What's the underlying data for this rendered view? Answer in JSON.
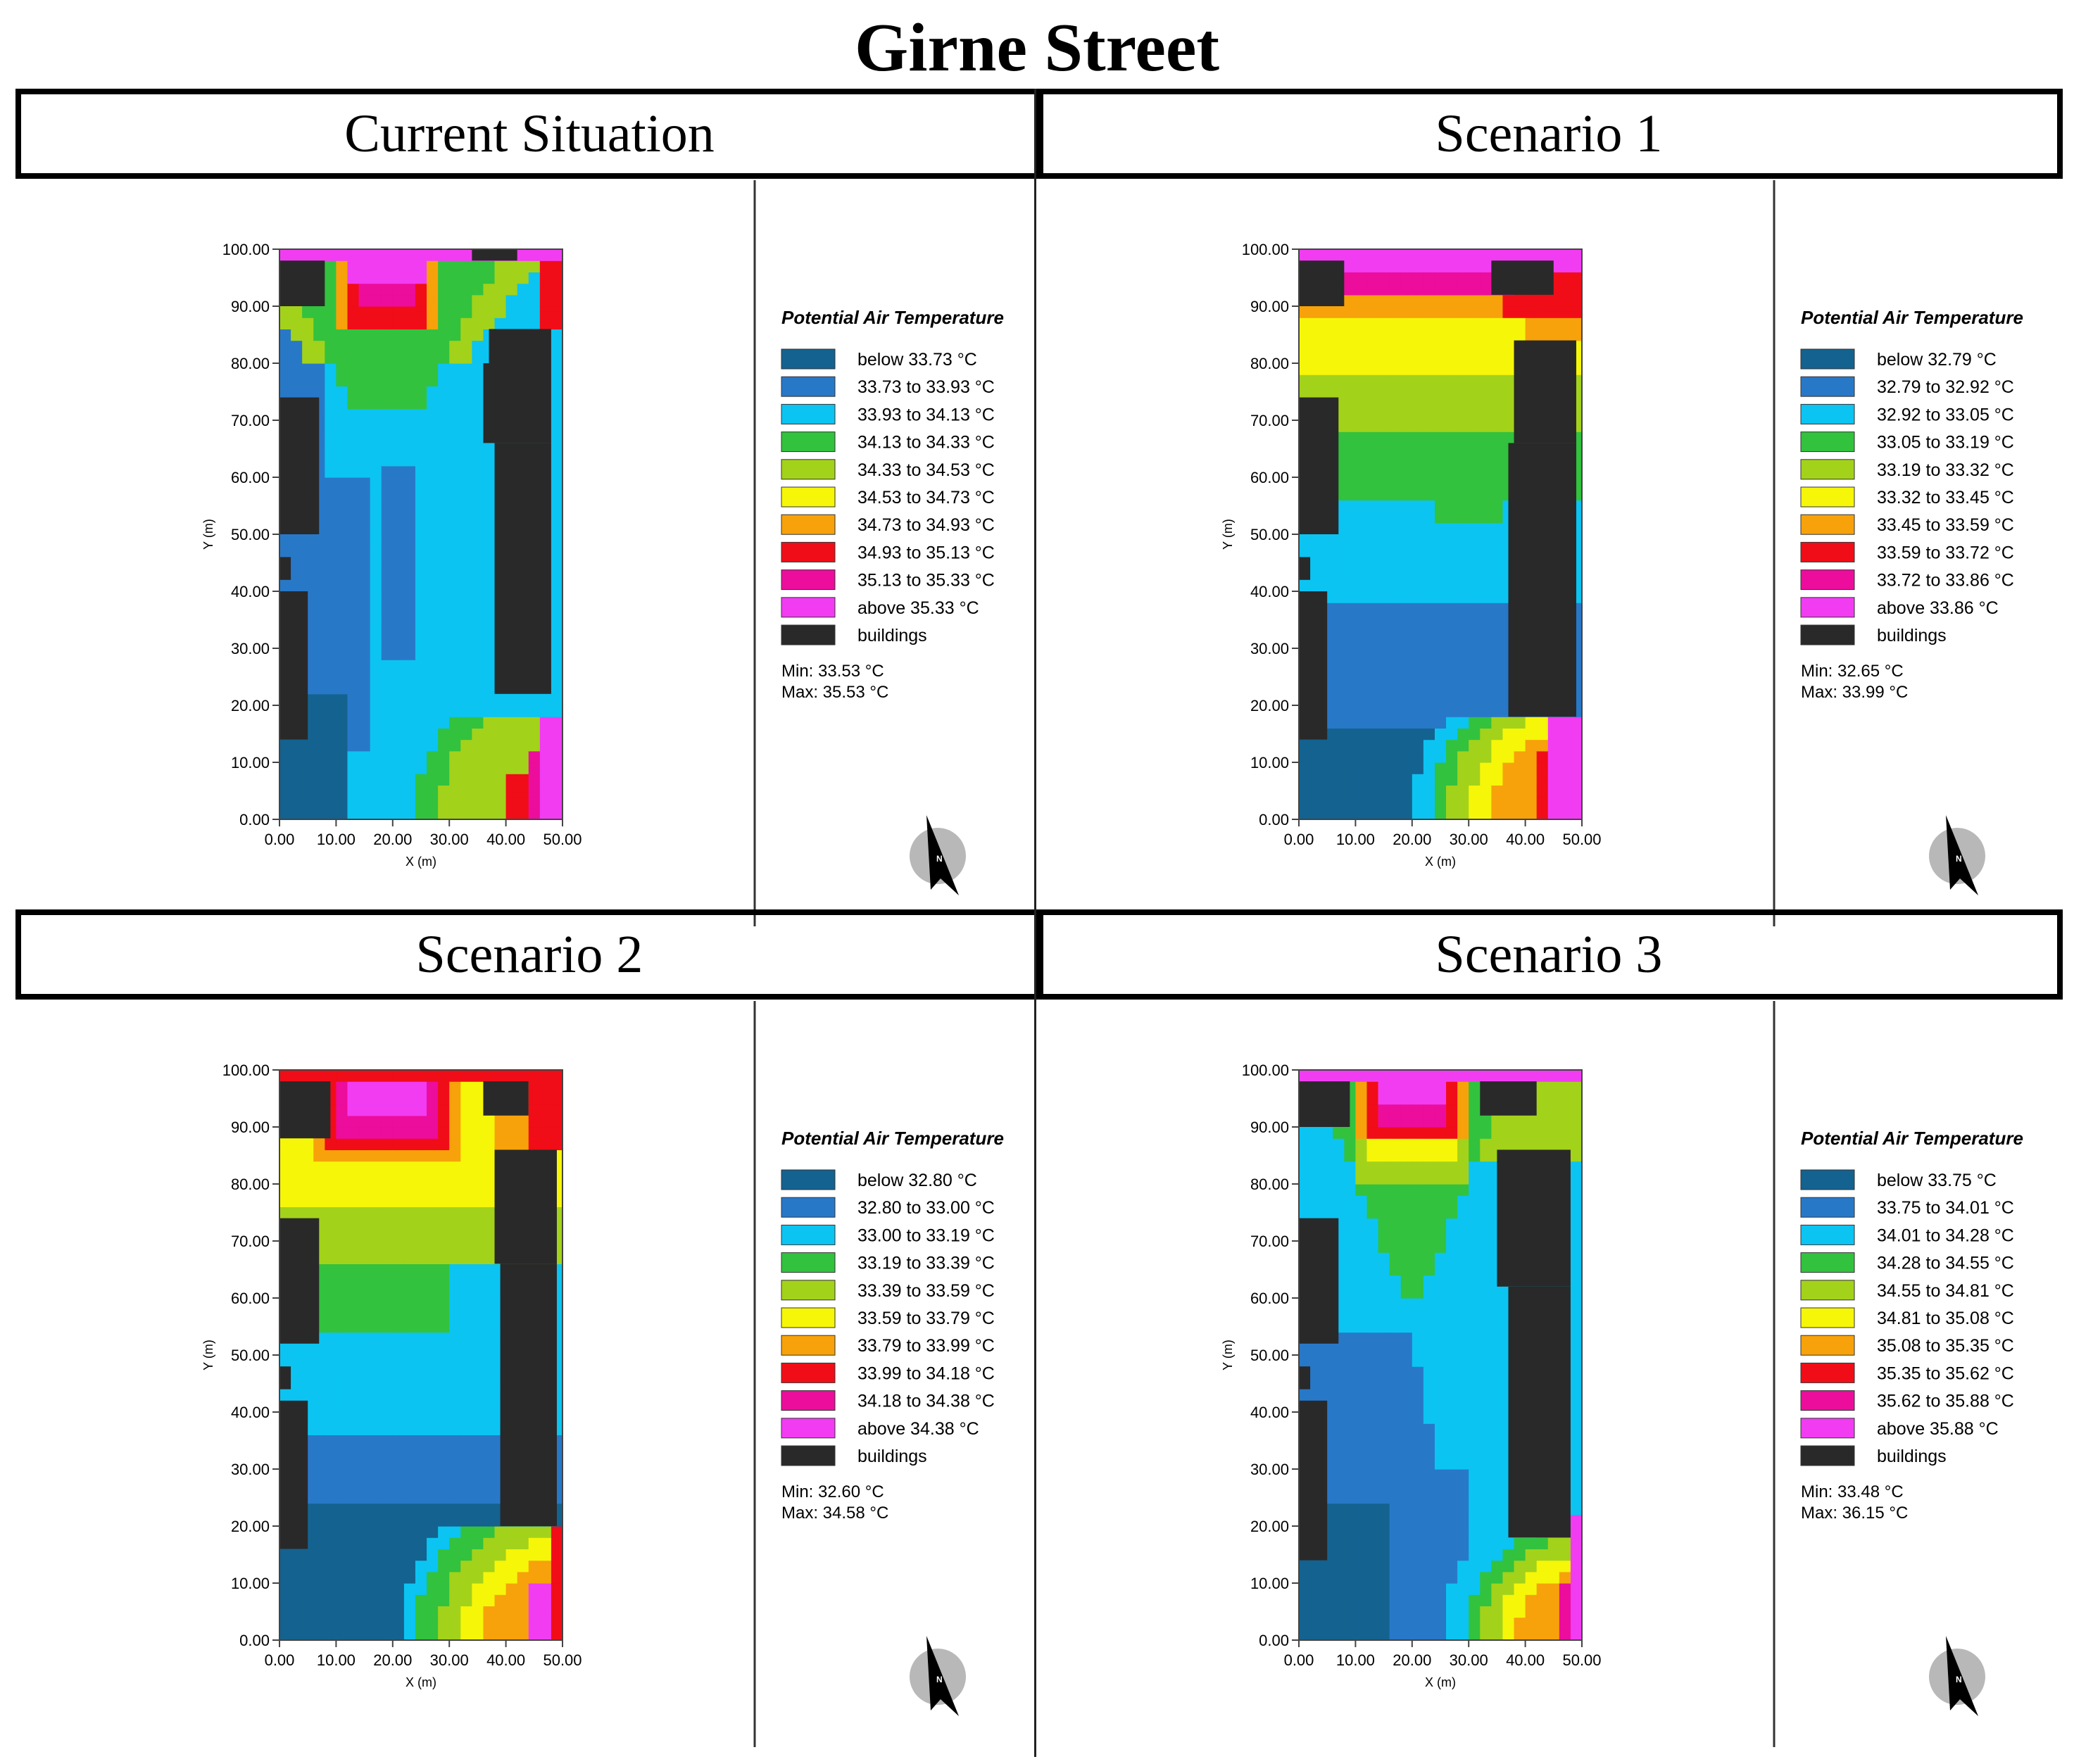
{
  "title": "Girne Street",
  "colors": {
    "below": "#14628f",
    "c1": "#2878c8",
    "c2": "#0bc4f2",
    "c3": "#32c23e",
    "c4": "#a3d21a",
    "c5": "#f6f609",
    "c6": "#f7a20a",
    "c7": "#f10d17",
    "c8": "#ec0d9c",
    "above": "#f13cf2",
    "buildings": "#292929"
  },
  "chart_data": [
    {
      "type": "heatmap",
      "title": "Current Situation",
      "xlabel": "X (m)",
      "ylabel": "Y (m)",
      "xlim": [
        0,
        50
      ],
      "ylim": [
        0,
        100
      ],
      "x_ticks": [
        "0.00",
        "10.00",
        "20.00",
        "30.00",
        "40.00",
        "50.00"
      ],
      "y_ticks": [
        "0.00",
        "10.00",
        "20.00",
        "30.00",
        "40.00",
        "50.00",
        "60.00",
        "70.00",
        "80.00",
        "90.00",
        "100.00"
      ],
      "legend_title": "Potential Air Temperature",
      "legend": [
        "below 33.73 °C",
        "33.73 to 33.93 °C",
        "33.93 to 34.13 °C",
        "34.13 to 34.33 °C",
        "34.33 to 34.53 °C",
        "34.53 to 34.73 °C",
        "34.73 to 34.93 °C",
        "34.93 to 35.13 °C",
        "35.13 to 35.33 °C",
        "above 35.33 °C",
        "buildings"
      ],
      "min": "Min: 33.53 °C",
      "max": "Max: 35.53 °C",
      "pattern": "cool",
      "buildings": [
        [
          0,
          90,
          8,
          98
        ],
        [
          0,
          50,
          7,
          74
        ],
        [
          0,
          42,
          2,
          46
        ],
        [
          0,
          14,
          5,
          40
        ],
        [
          34,
          98,
          42,
          100
        ],
        [
          37,
          80,
          48,
          86
        ],
        [
          36,
          66,
          48,
          80
        ],
        [
          38,
          22,
          48,
          66
        ]
      ]
    },
    {
      "type": "heatmap",
      "title": "Scenario 1",
      "xlabel": "X (m)",
      "ylabel": "Y (m)",
      "xlim": [
        0,
        50
      ],
      "ylim": [
        0,
        100
      ],
      "x_ticks": [
        "0.00",
        "10.00",
        "20.00",
        "30.00",
        "40.00",
        "50.00"
      ],
      "y_ticks": [
        "0.00",
        "10.00",
        "20.00",
        "30.00",
        "40.00",
        "50.00",
        "60.00",
        "70.00",
        "80.00",
        "90.00",
        "100.00"
      ],
      "legend_title": "Potential Air Temperature",
      "legend": [
        "below 32.79 °C",
        "32.79 to 32.92 °C",
        "32.92 to 33.05 °C",
        "33.05 to 33.19 °C",
        "33.19 to 33.32 °C",
        "33.32 to 33.45 °C",
        "33.45 to 33.59 °C",
        "33.59 to 33.72 °C",
        "33.72 to 33.86 °C",
        "above 33.86 °C",
        "buildings"
      ],
      "min": "Min: 32.65 °C",
      "max": "Max: 33.99 °C",
      "pattern": "warm",
      "buildings": [
        [
          0,
          90,
          8,
          98
        ],
        [
          0,
          50,
          7,
          74
        ],
        [
          0,
          42,
          2,
          46
        ],
        [
          0,
          14,
          5,
          40
        ],
        [
          34,
          92,
          45,
          98
        ],
        [
          38,
          66,
          49,
          84
        ],
        [
          37,
          18,
          49,
          66
        ]
      ]
    },
    {
      "type": "heatmap",
      "title": "Scenario 2",
      "xlabel": "X (m)",
      "ylabel": "Y (m)",
      "xlim": [
        0,
        50
      ],
      "ylim": [
        0,
        100
      ],
      "x_ticks": [
        "0.00",
        "10.00",
        "20.00",
        "30.00",
        "40.00",
        "50.00"
      ],
      "y_ticks": [
        "0.00",
        "10.00",
        "20.00",
        "30.00",
        "40.00",
        "50.00",
        "60.00",
        "70.00",
        "80.00",
        "90.00",
        "100.00"
      ],
      "legend_title": "Potential Air Temperature",
      "legend": [
        "below 32.80 °C",
        "32.80 to 33.00 °C",
        "33.00 to 33.19 °C",
        "33.19 to 33.39 °C",
        "33.39 to 33.59 °C",
        "33.59 to 33.79 °C",
        "33.79 to 33.99 °C",
        "33.99 to 34.18 °C",
        "34.18 to 34.38 °C",
        "above 34.38 °C",
        "buildings"
      ],
      "min": "Min: 32.60 °C",
      "max": "Max: 34.58 °C",
      "pattern": "mid",
      "buildings": [
        [
          0,
          88,
          9,
          98
        ],
        [
          0,
          52,
          7,
          74
        ],
        [
          0,
          44,
          2,
          48
        ],
        [
          0,
          16,
          5,
          42
        ],
        [
          36,
          92,
          44,
          98
        ],
        [
          38,
          66,
          49,
          86
        ],
        [
          39,
          20,
          49,
          66
        ]
      ]
    },
    {
      "type": "heatmap",
      "title": "Scenario 3",
      "xlabel": "X (m)",
      "ylabel": "Y (m)",
      "xlim": [
        0,
        50
      ],
      "ylim": [
        0,
        100
      ],
      "x_ticks": [
        "0.00",
        "10.00",
        "20.00",
        "30.00",
        "40.00",
        "50.00"
      ],
      "y_ticks": [
        "0.00",
        "10.00",
        "20.00",
        "30.00",
        "40.00",
        "50.00",
        "60.00",
        "70.00",
        "80.00",
        "90.00",
        "100.00"
      ],
      "legend_title": "Potential Air Temperature",
      "legend": [
        "below 33.75 °C",
        "33.75 to 34.01 °C",
        "34.01 to 34.28 °C",
        "34.28 to 34.55 °C",
        "34.55 to 34.81 °C",
        "34.81 to 35.08 °C",
        "35.08 to 35.35 °C",
        "35.35 to 35.62 °C",
        "35.62 to 35.88 °C",
        "above 35.88 °C",
        "buildings"
      ],
      "min": "Min: 33.48 °C",
      "max": "Max: 36.15 °C",
      "pattern": "cool3",
      "buildings": [
        [
          0,
          90,
          9,
          98
        ],
        [
          0,
          52,
          7,
          74
        ],
        [
          0,
          44,
          2,
          48
        ],
        [
          0,
          14,
          5,
          42
        ],
        [
          32,
          92,
          42,
          98
        ],
        [
          35,
          62,
          48,
          86
        ],
        [
          37,
          18,
          48,
          62
        ]
      ]
    }
  ]
}
